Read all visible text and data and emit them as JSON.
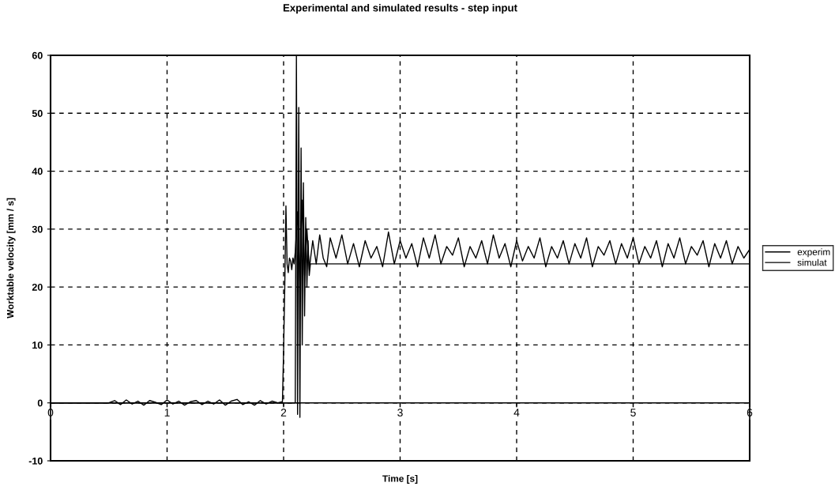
{
  "chart_data": {
    "type": "line",
    "title": "Experimental and simulated results - step input",
    "xlabel": "Time [s]",
    "ylabel": "Worktable velocity [mm / s]",
    "xlim": [
      0,
      6
    ],
    "xticks": [
      0,
      1,
      2,
      3,
      4,
      5,
      6
    ],
    "ylim": [
      -10,
      60
    ],
    "yticks": [
      -10,
      0,
      10,
      20,
      30,
      40,
      50,
      60
    ],
    "grid": true,
    "legend": "right",
    "line_style": "solid",
    "marker": "none",
    "series": [
      {
        "name": "experim",
        "color": "#000000",
        "x": [
          0,
          0.5,
          0.55,
          0.6,
          0.65,
          0.7,
          0.75,
          0.8,
          0.85,
          0.9,
          0.95,
          1.0,
          1.05,
          1.1,
          1.15,
          1.2,
          1.25,
          1.3,
          1.35,
          1.4,
          1.45,
          1.5,
          1.55,
          1.6,
          1.65,
          1.7,
          1.75,
          1.8,
          1.85,
          1.9,
          1.95,
          1.99,
          2.0,
          2.01,
          2.02,
          2.03,
          2.04,
          2.05,
          2.06,
          2.07,
          2.08,
          2.09,
          2.1,
          2.12,
          2.14,
          2.16,
          2.18,
          2.2,
          2.22,
          2.25,
          2.28,
          2.31,
          2.34,
          2.37,
          2.4,
          2.45,
          2.5,
          2.55,
          2.6,
          2.65,
          2.7,
          2.75,
          2.8,
          2.85,
          2.9,
          2.95,
          3.0,
          3.05,
          3.1,
          3.15,
          3.2,
          3.25,
          3.3,
          3.35,
          3.4,
          3.45,
          3.5,
          3.55,
          3.6,
          3.65,
          3.7,
          3.75,
          3.8,
          3.85,
          3.9,
          3.95,
          4.0,
          4.05,
          4.1,
          4.15,
          4.2,
          4.25,
          4.3,
          4.35,
          4.4,
          4.45,
          4.5,
          4.55,
          4.6,
          4.65,
          4.7,
          4.75,
          4.8,
          4.85,
          4.9,
          4.95,
          5.0,
          5.05,
          5.1,
          5.15,
          5.2,
          5.25,
          5.3,
          5.35,
          5.4,
          5.45,
          5.5,
          5.55,
          5.6,
          5.65,
          5.7,
          5.75,
          5.8,
          5.85,
          5.9,
          5.95,
          6.0
        ],
        "values": [
          0,
          0,
          0.4,
          -0.3,
          0.5,
          -0.2,
          0.3,
          -0.4,
          0.4,
          0.1,
          -0.3,
          0.5,
          -0.2,
          0.3,
          -0.4,
          0.2,
          0.4,
          -0.3,
          0.3,
          -0.2,
          0.5,
          -0.4,
          0.3,
          0.6,
          -0.3,
          0.2,
          -0.4,
          0.4,
          -0.2,
          0.3,
          0,
          0.2,
          9,
          20,
          34,
          24,
          22.5,
          25,
          24.5,
          23,
          25,
          24,
          26,
          33,
          21,
          35,
          22,
          30,
          23,
          28,
          24,
          29,
          25,
          23.5,
          28.5,
          25,
          29,
          24,
          27.5,
          23.5,
          28,
          25,
          27,
          23.5,
          29.5,
          24,
          28,
          25,
          27.5,
          23.5,
          28.5,
          25,
          29,
          24,
          27,
          25.5,
          28.5,
          23.5,
          27,
          25,
          28,
          24,
          29,
          25,
          27.5,
          23.5,
          28,
          24.5,
          27,
          25,
          28.5,
          23.5,
          27,
          25,
          28,
          24,
          27.5,
          25,
          28.5,
          23.5,
          27,
          25.5,
          28,
          24,
          27.5,
          25,
          28.5,
          24,
          27,
          25,
          28,
          23.5,
          27.5,
          25,
          28.5,
          24,
          27,
          25.5,
          28,
          23.5,
          27.5,
          25,
          28,
          24,
          27,
          25,
          26.5
        ]
      },
      {
        "name": "simulat",
        "color": "#000000",
        "x": [
          0,
          2.1,
          2.11,
          2.12,
          2.13,
          2.14,
          2.15,
          2.16,
          2.17,
          2.18,
          2.19,
          2.2,
          2.21,
          2.22,
          2.23,
          6.0
        ],
        "values": [
          0,
          0,
          60,
          -2,
          51,
          -2.5,
          44,
          10,
          38,
          15,
          32,
          20,
          28,
          22,
          24,
          24
        ]
      }
    ]
  }
}
